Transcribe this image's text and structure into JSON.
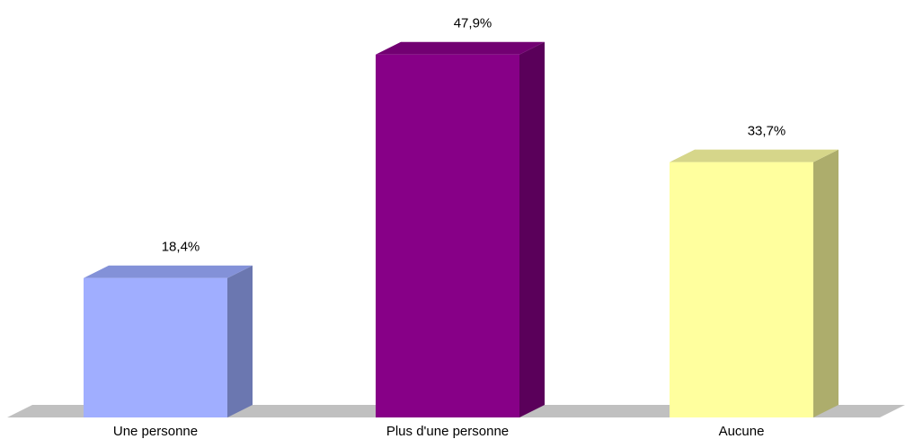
{
  "chart_data": {
    "type": "bar",
    "categories": [
      "Une personne",
      "Plus d'une personne",
      "Aucune"
    ],
    "values": [
      18.4,
      47.9,
      33.7
    ],
    "value_labels": [
      "18,4%",
      "47,9%",
      "33,7%"
    ],
    "ylim": [
      0,
      50
    ],
    "grid": false,
    "legend": "none",
    "three_d": true,
    "colors": {
      "bars": [
        {
          "front": "#a0aeff",
          "top": "#8391d8",
          "side": "#6b77b0"
        },
        {
          "front": "#870087",
          "top": "#720072",
          "side": "#5a005a"
        },
        {
          "front": "#ffff9e",
          "top": "#d6d68a",
          "side": "#adad6c"
        }
      ],
      "floor": "#c0c0c0"
    }
  }
}
